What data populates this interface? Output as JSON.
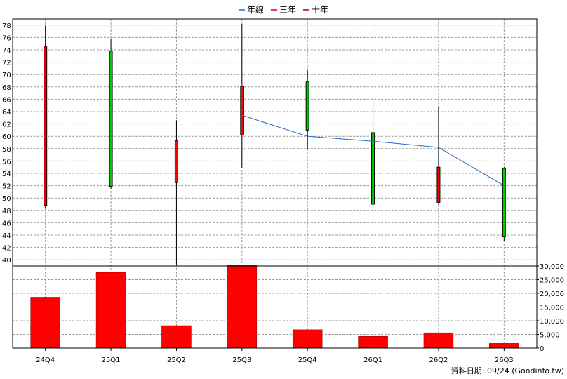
{
  "chart_data": {
    "type": "candlestick+bar",
    "legend": [
      {
        "name": "年線",
        "color": "#1f6fc6"
      },
      {
        "name": "三年",
        "color": "#d00000"
      },
      {
        "name": "十年",
        "color": "#b00000"
      }
    ],
    "legend_placement": "top-center",
    "grid": true,
    "categories": [
      "24Q4",
      "25Q1",
      "25Q2",
      "25Q3",
      "25Q4",
      "26Q1",
      "26Q2",
      "26Q3"
    ],
    "price_axis": {
      "ylim": [
        39,
        79
      ],
      "ticks": [
        40,
        42,
        44,
        46,
        48,
        50,
        52,
        54,
        56,
        58,
        60,
        62,
        64,
        66,
        68,
        70,
        72,
        74,
        76,
        78
      ]
    },
    "candles": [
      {
        "open": 48.8,
        "close": 74.6,
        "high": 77.9,
        "low": 48.3,
        "color": "#ff0000"
      },
      {
        "open": 73.8,
        "close": 51.9,
        "high": 75.8,
        "low": 51.5,
        "color": "#00cc00"
      },
      {
        "open": 52.5,
        "close": 59.3,
        "high": 62.6,
        "low": 39.2,
        "color": "#ff0000"
      },
      {
        "open": 60.2,
        "close": 68.1,
        "high": 78.2,
        "low": 54.9,
        "color": "#ff0000"
      },
      {
        "open": 68.9,
        "close": 61.0,
        "high": 70.7,
        "low": 57.9,
        "color": "#00cc00"
      },
      {
        "open": 60.6,
        "close": 49.0,
        "high": 66.0,
        "low": 48.2,
        "color": "#00cc00"
      },
      {
        "open": 49.3,
        "close": 55.0,
        "high": 64.9,
        "low": 48.9,
        "color": "#ff0000"
      },
      {
        "open": 54.8,
        "close": 43.8,
        "high": 55.0,
        "low": 43.1,
        "color": "#00cc00"
      }
    ],
    "line_series": {
      "name": "年線",
      "color": "#1f6fc6",
      "points": [
        {
          "x": "25Q3",
          "y": 63.4
        },
        {
          "x": "25Q4",
          "y": 60.0
        },
        {
          "x": "26Q1",
          "y": 59.2
        },
        {
          "x": "26Q2",
          "y": 58.2
        },
        {
          "x": "26Q3",
          "y": 52.0
        }
      ]
    },
    "volume_axis": {
      "ylim": [
        0,
        30000
      ],
      "ticks": [
        0,
        5000,
        10000,
        15000,
        20000,
        25000,
        30000
      ],
      "tick_labels": [
        "0",
        "5,000",
        "10,000",
        "15,000",
        "20,000",
        "25,000",
        "30,000"
      ]
    },
    "volume": {
      "color": "#ff0000",
      "values": [
        18600,
        27700,
        8200,
        30400,
        6700,
        4300,
        5600,
        1700
      ]
    }
  },
  "footer": {
    "text": "資料日期: 09/24  (Goodinfo.tw)"
  }
}
